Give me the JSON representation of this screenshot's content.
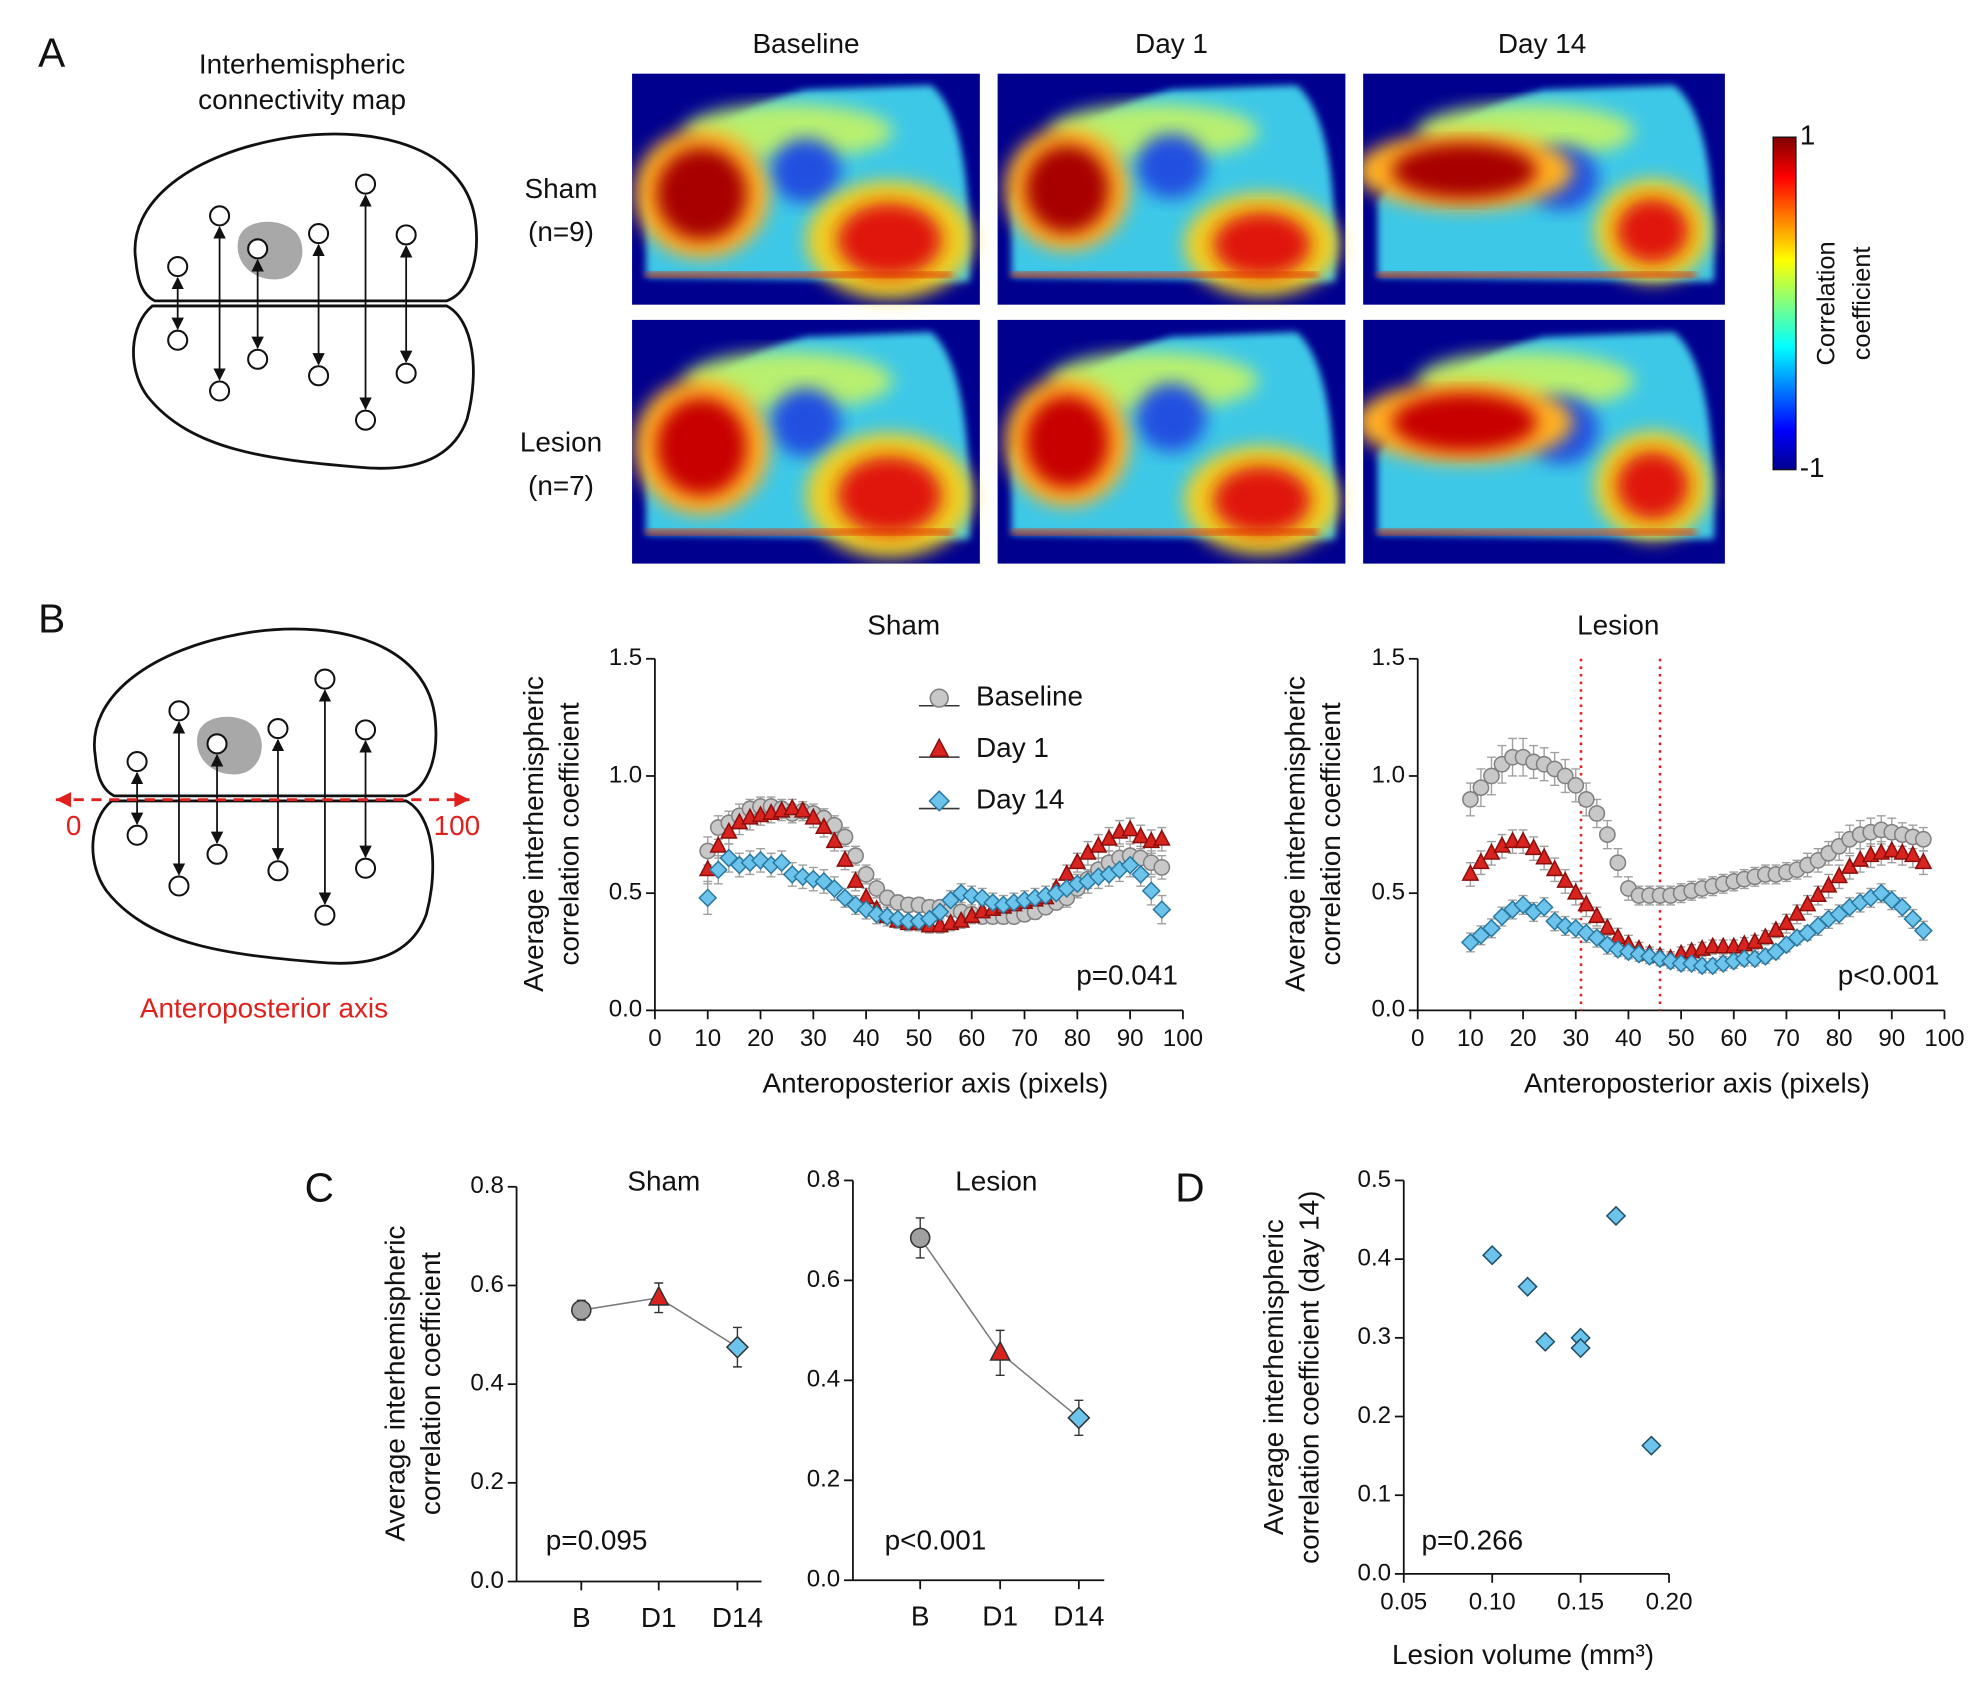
{
  "panel_labels": [
    "A",
    "B",
    "C",
    "D"
  ],
  "connectivity_map": {
    "title": [
      "Interhemispheric",
      "connectivity map"
    ],
    "columns": [
      "Baseline",
      "Day 1",
      "Day 14"
    ],
    "rows": [
      [
        "Sham",
        "(n=9)"
      ],
      [
        "Lesion",
        "(n=7)"
      ]
    ],
    "colorbar": {
      "title": [
        "Correlation",
        "coefficient"
      ],
      "lim": [
        -1,
        1
      ],
      "ticks": [
        -1,
        1
      ]
    }
  },
  "axis_diagram": {
    "start": "0",
    "end": "100",
    "label": "Anteroposterior axis"
  },
  "chart_data": [
    {
      "type": "line",
      "title": "Sham",
      "x": [
        10,
        12,
        14,
        16,
        18,
        20,
        22,
        24,
        26,
        28,
        30,
        32,
        34,
        36,
        38,
        40,
        42,
        44,
        46,
        48,
        50,
        52,
        54,
        56,
        58,
        60,
        62,
        64,
        66,
        68,
        70,
        72,
        74,
        76,
        78,
        80,
        82,
        84,
        86,
        88,
        90,
        92,
        94,
        96
      ],
      "series": [
        {
          "name": "Baseline",
          "color": "#c8c8c8",
          "stroke": "#808080",
          "marker": "circle",
          "values": [
            0.68,
            0.78,
            0.8,
            0.83,
            0.86,
            0.87,
            0.87,
            0.86,
            0.84,
            0.85,
            0.84,
            0.82,
            0.79,
            0.74,
            0.66,
            0.58,
            0.52,
            0.48,
            0.46,
            0.45,
            0.45,
            0.44,
            0.44,
            0.43,
            0.42,
            0.41,
            0.4,
            0.4,
            0.4,
            0.4,
            0.41,
            0.42,
            0.44,
            0.46,
            0.48,
            0.52,
            0.56,
            0.6,
            0.63,
            0.65,
            0.66,
            0.65,
            0.63,
            0.61
          ],
          "errors": [
            0.06,
            0.05,
            0.05,
            0.05,
            0.04,
            0.04,
            0.04,
            0.04,
            0.04,
            0.04,
            0.04,
            0.04,
            0.04,
            0.04,
            0.04,
            0.04,
            0.04,
            0.03,
            0.03,
            0.03,
            0.03,
            0.03,
            0.03,
            0.03,
            0.03,
            0.03,
            0.03,
            0.03,
            0.03,
            0.03,
            0.03,
            0.03,
            0.03,
            0.03,
            0.04,
            0.04,
            0.04,
            0.05,
            0.05,
            0.05,
            0.05,
            0.05,
            0.05,
            0.05
          ]
        },
        {
          "name": "Day 1",
          "color": "#d9231f",
          "stroke": "#8a0f0c",
          "marker": "triangle",
          "values": [
            0.6,
            0.7,
            0.76,
            0.8,
            0.82,
            0.83,
            0.84,
            0.85,
            0.86,
            0.85,
            0.82,
            0.78,
            0.72,
            0.64,
            0.55,
            0.48,
            0.43,
            0.4,
            0.38,
            0.37,
            0.37,
            0.36,
            0.36,
            0.37,
            0.38,
            0.4,
            0.42,
            0.43,
            0.44,
            0.45,
            0.46,
            0.47,
            0.48,
            0.52,
            0.58,
            0.63,
            0.67,
            0.7,
            0.73,
            0.76,
            0.77,
            0.74,
            0.72,
            0.73
          ],
          "errors": [
            0.06,
            0.05,
            0.05,
            0.05,
            0.05,
            0.04,
            0.04,
            0.04,
            0.04,
            0.04,
            0.04,
            0.04,
            0.04,
            0.04,
            0.04,
            0.04,
            0.03,
            0.03,
            0.03,
            0.03,
            0.03,
            0.03,
            0.03,
            0.03,
            0.03,
            0.03,
            0.03,
            0.03,
            0.03,
            0.03,
            0.03,
            0.03,
            0.03,
            0.04,
            0.04,
            0.04,
            0.05,
            0.05,
            0.05,
            0.05,
            0.05,
            0.05,
            0.05,
            0.05
          ]
        },
        {
          "name": "Day 14",
          "color": "#6cc3ec",
          "stroke": "#2a79a0",
          "marker": "diamond",
          "values": [
            0.48,
            0.6,
            0.65,
            0.62,
            0.63,
            0.64,
            0.62,
            0.63,
            0.58,
            0.57,
            0.56,
            0.55,
            0.52,
            0.48,
            0.45,
            0.43,
            0.41,
            0.4,
            0.39,
            0.38,
            0.38,
            0.39,
            0.42,
            0.47,
            0.5,
            0.49,
            0.48,
            0.46,
            0.45,
            0.46,
            0.47,
            0.48,
            0.49,
            0.5,
            0.52,
            0.54,
            0.55,
            0.57,
            0.58,
            0.6,
            0.62,
            0.58,
            0.51,
            0.43
          ],
          "errors": [
            0.07,
            0.06,
            0.06,
            0.05,
            0.05,
            0.05,
            0.05,
            0.05,
            0.05,
            0.05,
            0.05,
            0.05,
            0.05,
            0.04,
            0.04,
            0.04,
            0.04,
            0.04,
            0.04,
            0.04,
            0.04,
            0.04,
            0.04,
            0.04,
            0.04,
            0.04,
            0.04,
            0.04,
            0.04,
            0.04,
            0.04,
            0.04,
            0.04,
            0.04,
            0.04,
            0.04,
            0.05,
            0.05,
            0.05,
            0.05,
            0.05,
            0.05,
            0.06,
            0.06
          ]
        }
      ],
      "xlim": [
        0,
        100
      ],
      "xticks": [
        0,
        10,
        20,
        30,
        40,
        50,
        60,
        70,
        80,
        90,
        100
      ],
      "ylim": [
        0,
        1.5
      ],
      "yticks": [
        {
          "value": 0,
          "label": "0.0"
        },
        0.5,
        {
          "value": 1,
          "label": "1.0"
        },
        1.5
      ],
      "xlabel": "Anteroposterior axis (pixels)",
      "ylabel": [
        "Average interhemispheric",
        "correlation coefficient"
      ],
      "annotation": "p=0.041",
      "legend": "upper center"
    },
    {
      "type": "line",
      "title": "Lesion",
      "x": [
        10,
        12,
        14,
        16,
        18,
        20,
        22,
        24,
        26,
        28,
        30,
        32,
        34,
        36,
        38,
        40,
        42,
        44,
        46,
        48,
        50,
        52,
        54,
        56,
        58,
        60,
        62,
        64,
        66,
        68,
        70,
        72,
        74,
        76,
        78,
        80,
        82,
        84,
        86,
        88,
        90,
        92,
        94,
        96
      ],
      "series": [
        {
          "color": "#c8c8c8",
          "stroke": "#808080",
          "marker": "circle",
          "values": [
            0.9,
            0.95,
            1.0,
            1.05,
            1.08,
            1.08,
            1.06,
            1.05,
            1.03,
            1.0,
            0.96,
            0.9,
            0.84,
            0.75,
            0.63,
            0.52,
            0.49,
            0.49,
            0.49,
            0.49,
            0.5,
            0.51,
            0.52,
            0.53,
            0.54,
            0.55,
            0.56,
            0.57,
            0.58,
            0.58,
            0.59,
            0.6,
            0.62,
            0.64,
            0.67,
            0.7,
            0.73,
            0.75,
            0.76,
            0.77,
            0.76,
            0.75,
            0.74,
            0.73
          ],
          "errors": [
            0.07,
            0.08,
            0.08,
            0.08,
            0.08,
            0.08,
            0.07,
            0.07,
            0.07,
            0.07,
            0.07,
            0.07,
            0.06,
            0.06,
            0.06,
            0.05,
            0.04,
            0.04,
            0.04,
            0.04,
            0.04,
            0.04,
            0.04,
            0.04,
            0.04,
            0.04,
            0.04,
            0.04,
            0.04,
            0.04,
            0.04,
            0.04,
            0.05,
            0.05,
            0.05,
            0.06,
            0.06,
            0.06,
            0.06,
            0.06,
            0.06,
            0.05,
            0.05,
            0.05
          ]
        },
        {
          "color": "#d9231f",
          "stroke": "#8a0f0c",
          "marker": "triangle",
          "values": [
            0.58,
            0.63,
            0.67,
            0.7,
            0.72,
            0.72,
            0.69,
            0.65,
            0.6,
            0.55,
            0.5,
            0.45,
            0.4,
            0.35,
            0.31,
            0.28,
            0.26,
            0.24,
            0.23,
            0.22,
            0.24,
            0.25,
            0.26,
            0.27,
            0.27,
            0.27,
            0.28,
            0.29,
            0.31,
            0.34,
            0.37,
            0.41,
            0.45,
            0.49,
            0.53,
            0.57,
            0.61,
            0.64,
            0.66,
            0.67,
            0.68,
            0.67,
            0.66,
            0.63
          ],
          "errors": [
            0.05,
            0.05,
            0.05,
            0.05,
            0.05,
            0.05,
            0.05,
            0.05,
            0.05,
            0.05,
            0.05,
            0.05,
            0.04,
            0.04,
            0.04,
            0.04,
            0.03,
            0.03,
            0.03,
            0.03,
            0.03,
            0.03,
            0.03,
            0.03,
            0.03,
            0.03,
            0.03,
            0.03,
            0.03,
            0.03,
            0.04,
            0.04,
            0.04,
            0.04,
            0.05,
            0.05,
            0.05,
            0.05,
            0.05,
            0.05,
            0.05,
            0.05,
            0.05,
            0.05
          ]
        },
        {
          "color": "#6cc3ec",
          "stroke": "#2a79a0",
          "marker": "diamond",
          "values": [
            0.29,
            0.32,
            0.35,
            0.4,
            0.43,
            0.45,
            0.42,
            0.44,
            0.38,
            0.36,
            0.35,
            0.33,
            0.31,
            0.28,
            0.26,
            0.25,
            0.24,
            0.23,
            0.22,
            0.21,
            0.2,
            0.2,
            0.19,
            0.19,
            0.2,
            0.21,
            0.22,
            0.22,
            0.23,
            0.25,
            0.28,
            0.31,
            0.33,
            0.36,
            0.39,
            0.41,
            0.44,
            0.46,
            0.48,
            0.5,
            0.47,
            0.44,
            0.39,
            0.34
          ],
          "errors": [
            0.04,
            0.04,
            0.04,
            0.04,
            0.04,
            0.04,
            0.04,
            0.04,
            0.04,
            0.04,
            0.04,
            0.04,
            0.04,
            0.04,
            0.03,
            0.03,
            0.03,
            0.03,
            0.03,
            0.03,
            0.03,
            0.03,
            0.03,
            0.03,
            0.03,
            0.03,
            0.03,
            0.03,
            0.03,
            0.03,
            0.03,
            0.03,
            0.03,
            0.04,
            0.04,
            0.04,
            0.04,
            0.04,
            0.04,
            0.04,
            0.04,
            0.04,
            0.04,
            0.04
          ]
        }
      ],
      "xlim": [
        0,
        100
      ],
      "xticks": [
        0,
        10,
        20,
        30,
        40,
        50,
        60,
        70,
        80,
        90,
        100
      ],
      "ylim": [
        0,
        1.5
      ],
      "yticks": [
        {
          "value": 0,
          "label": "0.0"
        },
        0.5,
        {
          "value": 1,
          "label": "1.0"
        },
        1.5
      ],
      "xlabel": "Anteroposterior axis (pixels)",
      "ylabel": [
        "Average interhemispheric",
        "correlation coefficient"
      ],
      "annotation": "p<0.001",
      "vlines": [
        31,
        46
      ],
      "vline_color": "#e0201c"
    },
    {
      "type": "dot",
      "title": "Sham",
      "categories": [
        "B",
        "D1",
        "D14"
      ],
      "values": [
        0.55,
        0.575,
        0.475
      ],
      "errors": [
        0.02,
        0.03,
        0.04
      ],
      "colors": [
        "#a0a0a0",
        "#d9231f",
        "#6cc3ec"
      ],
      "markers": [
        "circle",
        "triangle",
        "diamond"
      ],
      "line_color": "#7a7a7a",
      "ylim": [
        0,
        0.8
      ],
      "yticks": [
        {
          "value": 0,
          "label": "0.0"
        },
        0.2,
        0.4,
        0.6,
        0.8
      ],
      "ylabel": [
        "Average interhemispheric",
        "correlation coefficient"
      ],
      "annotation": "p=0.095"
    },
    {
      "type": "dot",
      "title": "Lesion",
      "categories": [
        "B",
        "D1",
        "D14"
      ],
      "values": [
        0.685,
        0.455,
        0.325
      ],
      "errors": [
        0.04,
        0.045,
        0.035
      ],
      "colors": [
        "#a0a0a0",
        "#d9231f",
        "#6cc3ec"
      ],
      "markers": [
        "circle",
        "triangle",
        "diamond"
      ],
      "line_color": "#7a7a7a",
      "ylim": [
        0,
        0.8
      ],
      "yticks": [
        {
          "value": 0,
          "label": "0.0"
        },
        0.2,
        0.4,
        0.6,
        0.8
      ],
      "annotation": "p<0.001"
    },
    {
      "type": "scatter",
      "x": [
        0.1,
        0.12,
        0.13,
        0.15,
        0.15,
        0.17,
        0.19
      ],
      "values": [
        0.405,
        0.365,
        0.295,
        0.3,
        0.287,
        0.455,
        0.163
      ],
      "color": "#6cc3ec",
      "stroke": "#1f4f66",
      "marker": "diamond",
      "xlim": [
        0.05,
        0.2
      ],
      "xticks": [
        0.05,
        {
          "value": 0.1,
          "label": "0.10"
        },
        0.15,
        {
          "value": 0.2,
          "label": "0.20"
        }
      ],
      "ylim": [
        0,
        0.5
      ],
      "yticks": [
        {
          "value": 0,
          "label": "0.0"
        },
        0.1,
        0.2,
        0.3,
        0.4,
        0.5
      ],
      "xlabel": "Lesion volume (mm³)",
      "ylabel": [
        "Average interhemispheric",
        "correlation coefficient (day 14)"
      ],
      "annotation": "p=0.266"
    }
  ]
}
